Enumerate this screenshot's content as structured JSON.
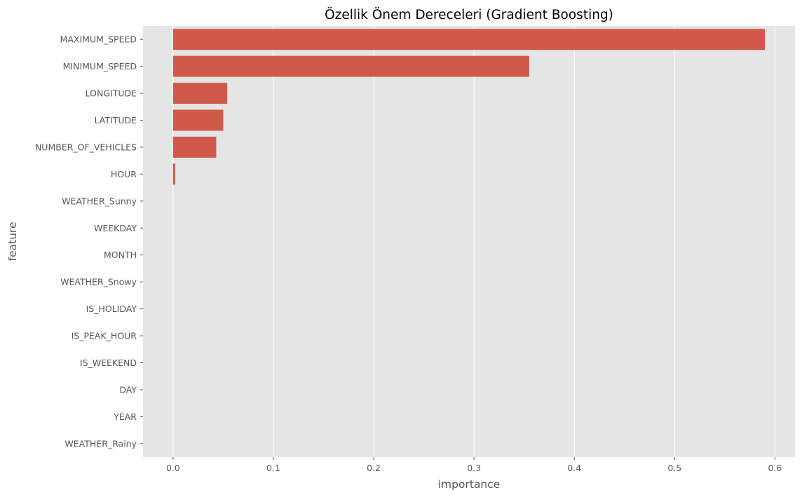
{
  "colors": {
    "bar": "#D0594A",
    "plot_background": "#E5E5E5",
    "grid": "#FFFFFF",
    "tick_text": "#555555",
    "title_text": "#000000"
  },
  "chart_data": {
    "type": "bar",
    "orientation": "horizontal",
    "title": "Özellik Önem Dereceleri (Gradient Boosting)",
    "xlabel": "importance",
    "ylabel": "feature",
    "categories": [
      "MAXIMUM_SPEED",
      "MINIMUM_SPEED",
      "LONGITUDE",
      "LATITUDE",
      "NUMBER_OF_VEHICLES",
      "HOUR",
      "WEATHER_Sunny",
      "WEEKDAY",
      "MONTH",
      "WEATHER_Snowy",
      "IS_HOLIDAY",
      "IS_PEAK_HOUR",
      "IS_WEEKEND",
      "DAY",
      "YEAR",
      "WEATHER_Rainy"
    ],
    "values": [
      0.59,
      0.355,
      0.054,
      0.05,
      0.043,
      0.002,
      0,
      0,
      0,
      0,
      0,
      0,
      0,
      0,
      0,
      0
    ],
    "xlim": [
      -0.03,
      0.62
    ],
    "xticks": [
      0.0,
      0.1,
      0.2,
      0.3,
      0.4,
      0.5,
      0.6
    ],
    "xtick_labels": [
      "0.0",
      "0.1",
      "0.2",
      "0.3",
      "0.4",
      "0.5",
      "0.6"
    ],
    "grid": true,
    "legend": false
  }
}
